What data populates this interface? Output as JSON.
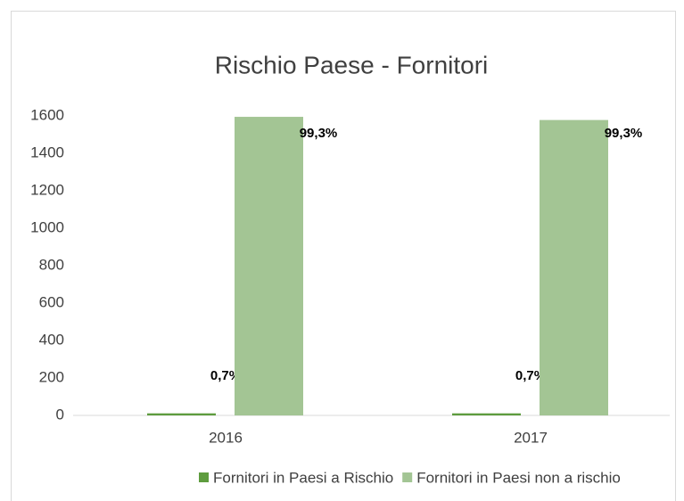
{
  "chart_data": {
    "type": "bar",
    "title": "Rischio Paese - Fornitori",
    "categories": [
      "2016",
      "2017"
    ],
    "series": [
      {
        "name": "Fornitori in Paesi a Rischio",
        "color": "#5e9c3e",
        "values": [
          11,
          11
        ],
        "percent_labels": [
          "0,7%",
          "0,7%"
        ]
      },
      {
        "name": "Fornitori in Paesi non a rischio",
        "color": "#a3c594",
        "values": [
          1595,
          1578
        ],
        "percent_labels": [
          "99,3%",
          "99,3%"
        ]
      }
    ],
    "ylim": [
      0,
      1600
    ],
    "yticks": [
      0,
      200,
      400,
      600,
      800,
      1000,
      1200,
      1400,
      1600
    ],
    "grid": false,
    "legend": "bottom"
  }
}
